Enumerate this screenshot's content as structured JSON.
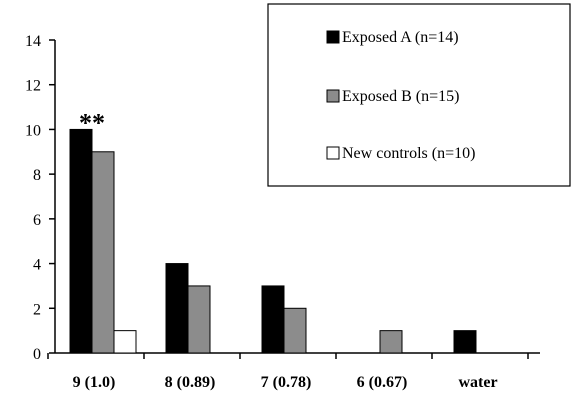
{
  "chart_data": {
    "type": "bar",
    "categories": [
      "9 (1.0)",
      "8 (0.89)",
      "7 (0.78)",
      "6 (0.67)",
      "water"
    ],
    "series": [
      {
        "name": "Exposed A (n=14)",
        "values": [
          10,
          4,
          3,
          0,
          1
        ],
        "color": "#000000"
      },
      {
        "name": "Exposed B (n=15)",
        "values": [
          9,
          3,
          2,
          1,
          0
        ],
        "color": "#8c8c8c"
      },
      {
        "name": "New controls (n=10)",
        "values": [
          1,
          0,
          0,
          0,
          0
        ],
        "color": "#ffffff"
      }
    ],
    "ylim": [
      0,
      14
    ],
    "yticks": [
      "0",
      "2",
      "4",
      "6",
      "8",
      "10",
      "12",
      "14"
    ],
    "annotations": [
      {
        "text": "**",
        "category": "9 (1.0)"
      }
    ],
    "legend": "top-right",
    "grid": false
  }
}
